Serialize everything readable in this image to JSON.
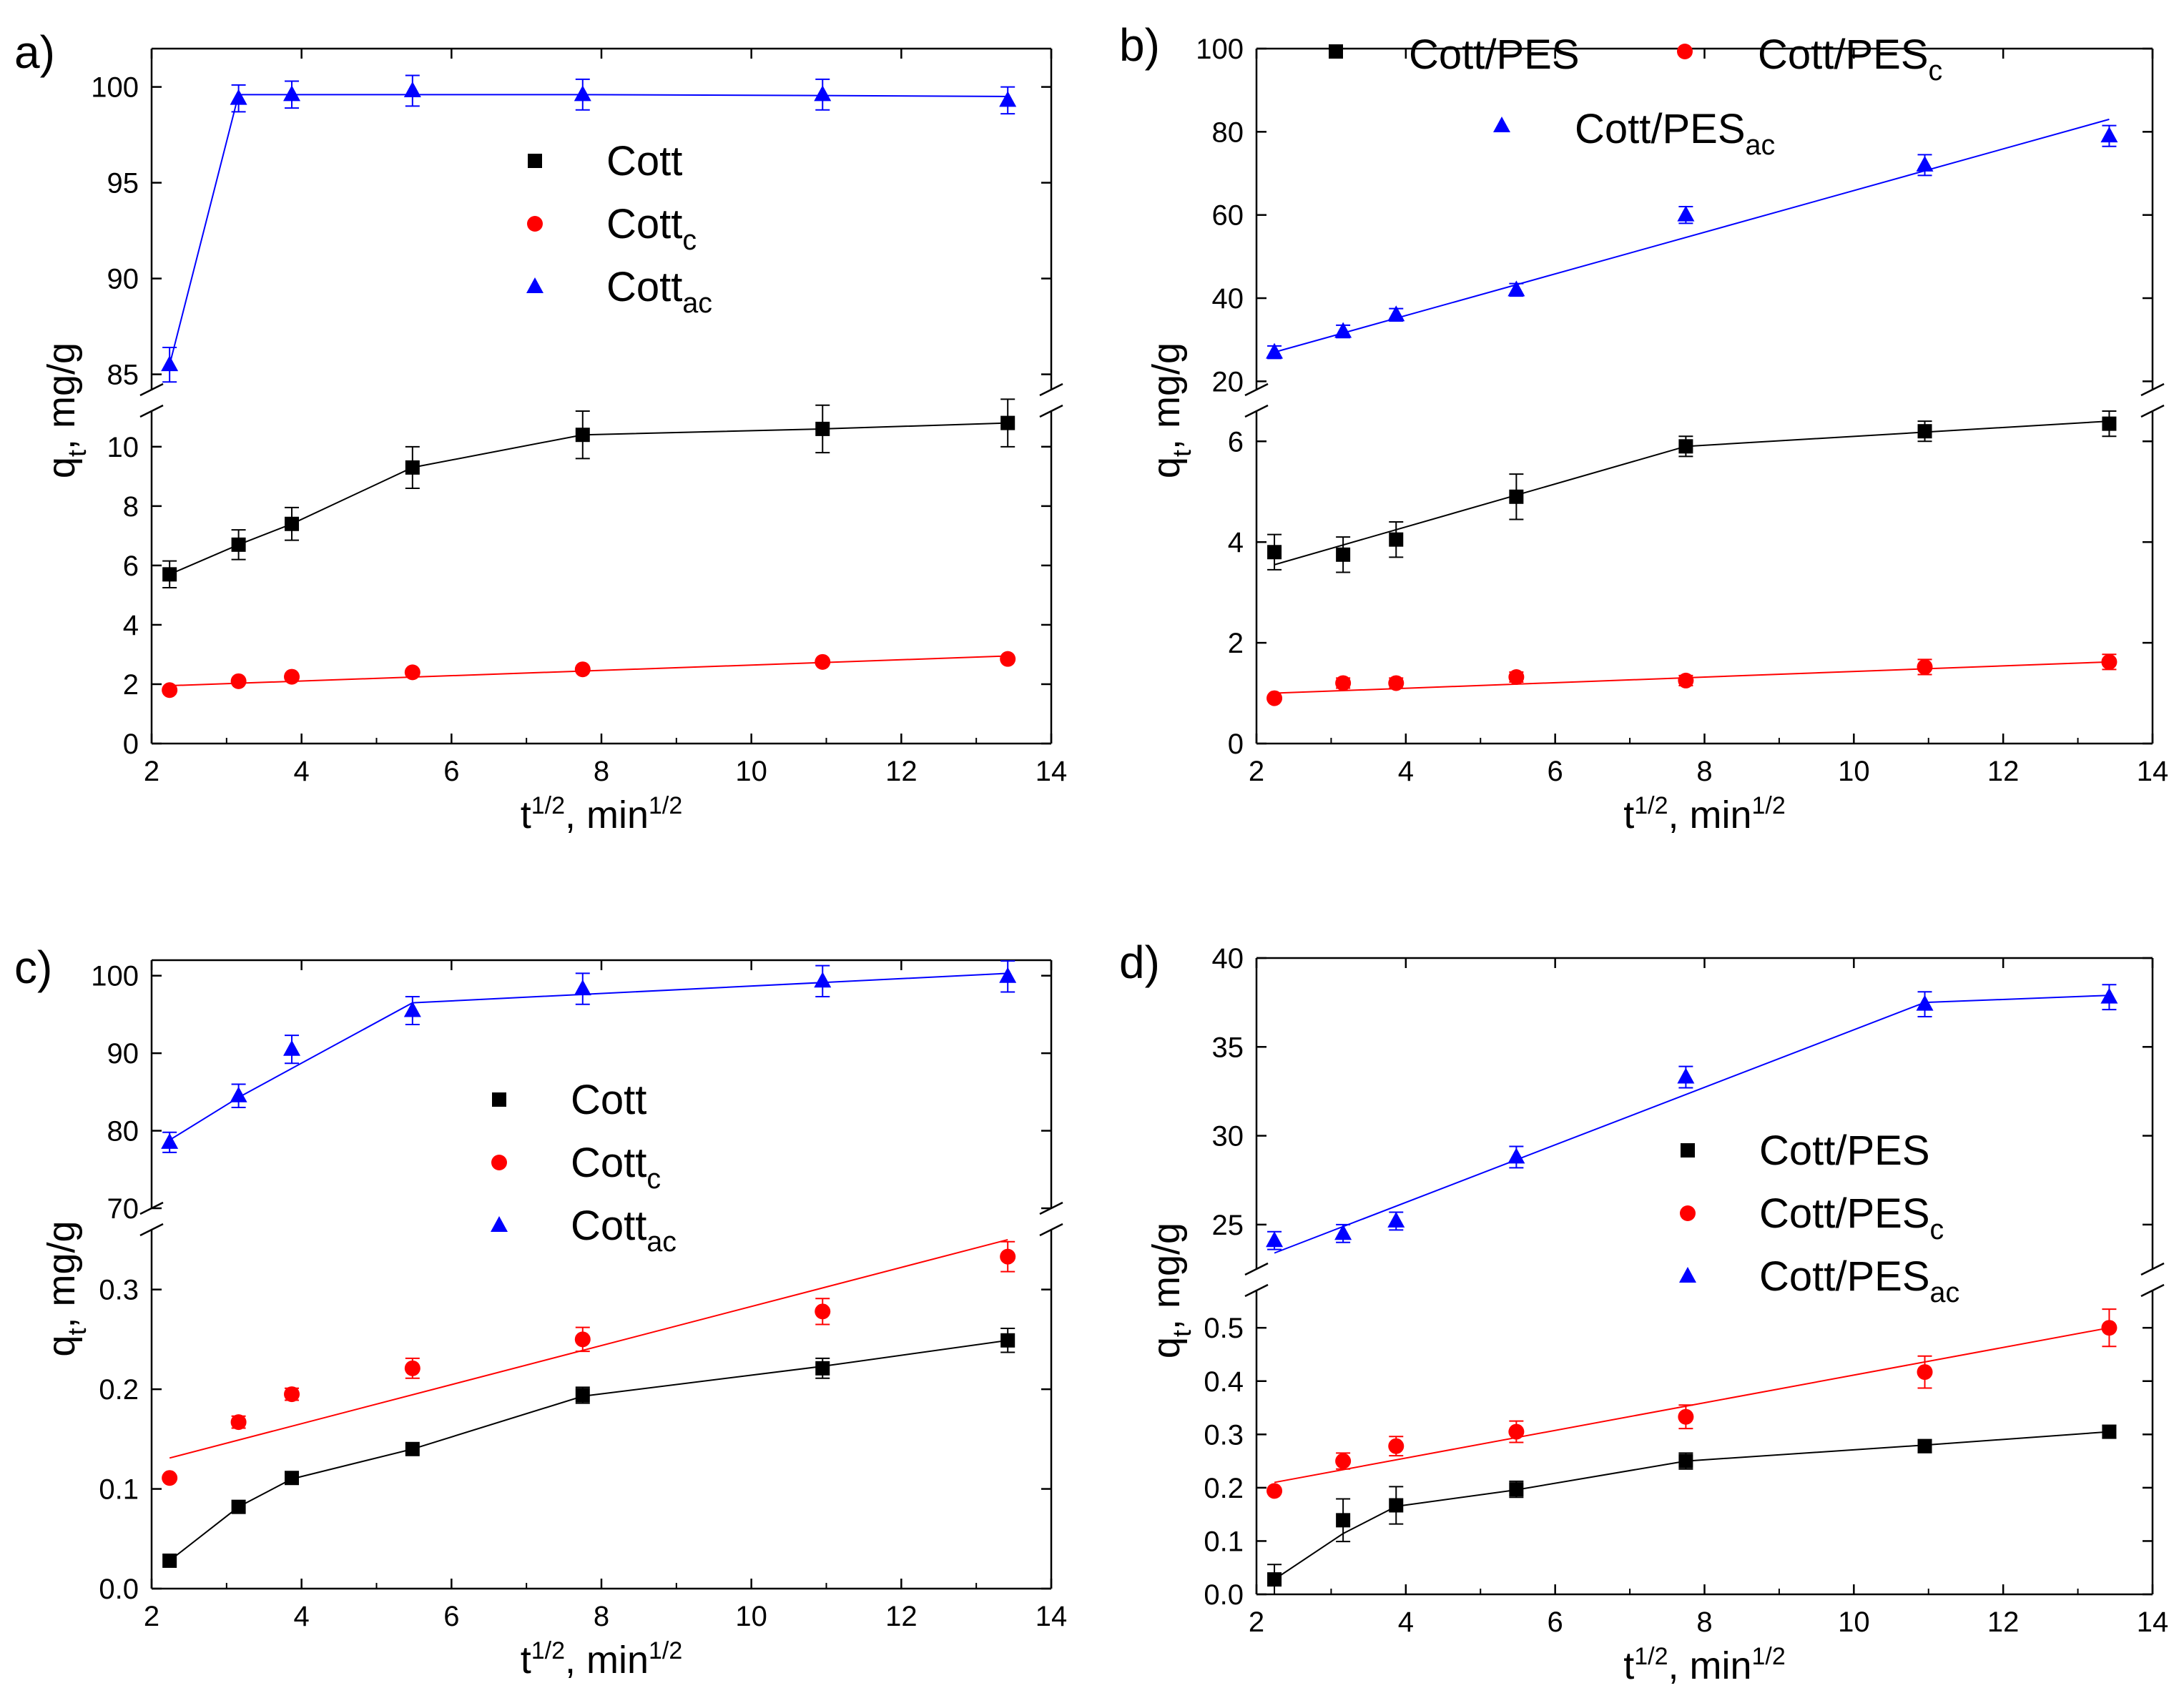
{
  "chart_data": [
    {
      "panel": "a)",
      "type": "scatter",
      "x_label": "t1/2, min1/2",
      "y_label": "qt, mg/g",
      "xlim": [
        2,
        14
      ],
      "x_ticks": [
        "2",
        "4",
        "6",
        "8",
        "10",
        "12",
        "14"
      ],
      "axis_break": true,
      "ylim_lower": [
        0,
        11.2
      ],
      "ylim_upper": [
        84.2,
        102
      ],
      "y_ticks_lower": [
        "0",
        "2",
        "4",
        "6",
        "8",
        "10"
      ],
      "y_ticks_upper": [
        "85",
        "90",
        "95",
        "100"
      ],
      "x": [
        2.24,
        3.16,
        3.87,
        5.48,
        7.75,
        10.95,
        13.42
      ],
      "legend": [
        {
          "label": "Cott",
          "sub": ""
        },
        {
          "label": "Cott",
          "sub": "c"
        },
        {
          "label": "Cott",
          "sub": "ac"
        }
      ],
      "series": [
        {
          "name": "Cott",
          "color": "#000000",
          "marker": "square",
          "axis": "lower",
          "values": [
            5.7,
            6.7,
            7.4,
            9.3,
            10.4,
            10.6,
            10.8
          ],
          "errors": [
            0.45,
            0.5,
            0.55,
            0.7,
            0.8,
            0.8,
            0.8
          ],
          "fit_x": [
            2.24,
            3.16,
            3.87,
            5.48,
            7.75,
            10.95,
            13.42
          ],
          "fit_y": [
            5.7,
            6.7,
            7.4,
            9.3,
            10.4,
            10.6,
            10.8
          ]
        },
        {
          "name": "Cottc",
          "color": "#ff0000",
          "marker": "circle",
          "axis": "lower",
          "values": [
            1.8,
            2.1,
            2.25,
            2.4,
            2.5,
            2.75,
            2.85
          ],
          "errors": [
            0,
            0,
            0,
            0,
            0,
            0,
            0
          ],
          "fit_x": [
            2.24,
            13.42
          ],
          "fit_y": [
            1.95,
            2.95
          ]
        },
        {
          "name": "Cottac",
          "color": "#0000ff",
          "marker": "triangle",
          "axis": "upper",
          "values": [
            85.5,
            99.4,
            99.6,
            99.8,
            99.6,
            99.6,
            99.3
          ],
          "errors": [
            0.9,
            0.7,
            0.7,
            0.8,
            0.8,
            0.8,
            0.7
          ],
          "fit_x": [
            2.24,
            3.16,
            3.87,
            5.48,
            7.75,
            10.95,
            13.42
          ],
          "fit_y": [
            85.5,
            99.6,
            99.6,
            99.6,
            99.6,
            99.55,
            99.5
          ]
        }
      ]
    },
    {
      "panel": "b)",
      "type": "scatter",
      "x_label": "t1/2, min1/2",
      "y_label": "qt, mg/g",
      "xlim": [
        2,
        14
      ],
      "x_ticks": [
        "2",
        "4",
        "6",
        "8",
        "10",
        "12",
        "14"
      ],
      "axis_break": true,
      "ylim_lower": [
        0,
        6.6
      ],
      "ylim_upper": [
        18,
        100
      ],
      "y_ticks_lower": [
        "0",
        "2",
        "4",
        "6"
      ],
      "y_ticks_upper": [
        "20",
        "40",
        "60",
        "80",
        "100"
      ],
      "x": [
        2.24,
        3.16,
        3.87,
        5.48,
        7.75,
        10.95,
        13.42
      ],
      "legend": [
        {
          "label": "Cott/PES",
          "sub": ""
        },
        {
          "label": "Cott/PES",
          "sub": "c"
        },
        {
          "label": "Cott/PES",
          "sub": "ac"
        }
      ],
      "series": [
        {
          "name": "Cott/PES",
          "color": "#000000",
          "marker": "square",
          "axis": "lower",
          "values": [
            3.8,
            3.75,
            4.05,
            4.9,
            5.9,
            6.2,
            6.35
          ],
          "errors": [
            0.35,
            0.35,
            0.35,
            0.45,
            0.2,
            0.2,
            0.25
          ],
          "fit_x": [
            2.24,
            7.75,
            13.42
          ],
          "fit_y": [
            3.55,
            5.9,
            6.4
          ]
        },
        {
          "name": "Cott/PESc",
          "color": "#ff0000",
          "marker": "circle",
          "axis": "lower",
          "values": [
            0.9,
            1.2,
            1.2,
            1.32,
            1.25,
            1.52,
            1.62
          ],
          "errors": [
            0,
            0.1,
            0.1,
            0.1,
            0.1,
            0.15,
            0.15
          ],
          "fit_x": [
            2.24,
            13.42
          ],
          "fit_y": [
            1.0,
            1.62
          ]
        },
        {
          "name": "Cott/PESac",
          "color": "#0000ff",
          "marker": "triangle",
          "axis": "upper",
          "values": [
            27,
            32,
            36,
            42,
            60,
            72,
            79
          ],
          "errors": [
            1.5,
            1.5,
            1.5,
            1.5,
            2,
            2.5,
            2.5
          ],
          "fit_x": [
            2.24,
            13.42
          ],
          "fit_y": [
            27,
            83
          ]
        }
      ]
    },
    {
      "panel": "c)",
      "type": "scatter",
      "x_label": "t1/2, min1/2",
      "y_label": "qt, mg/g",
      "xlim": [
        2,
        14
      ],
      "x_ticks": [
        "2",
        "4",
        "6",
        "8",
        "10",
        "12",
        "14"
      ],
      "axis_break": true,
      "ylim_lower": [
        0,
        0.36
      ],
      "ylim_upper": [
        70,
        102
      ],
      "y_ticks_lower": [
        "0.0",
        "0.1",
        "0.2",
        "0.3"
      ],
      "y_ticks_upper": [
        "70",
        "80",
        "90",
        "100"
      ],
      "x": [
        2.24,
        3.16,
        3.87,
        5.48,
        7.75,
        10.95,
        13.42
      ],
      "legend": [
        {
          "label": "Cott",
          "sub": ""
        },
        {
          "label": "Cott",
          "sub": "c"
        },
        {
          "label": "Cott",
          "sub": "ac"
        }
      ],
      "series": [
        {
          "name": "Cott",
          "color": "#000000",
          "marker": "square",
          "axis": "lower",
          "values": [
            0.028,
            0.082,
            0.111,
            0.14,
            0.194,
            0.221,
            0.249
          ],
          "errors": [
            0,
            0,
            0,
            0,
            0.008,
            0.01,
            0.012
          ],
          "fit_x": [
            2.24,
            3.16,
            3.87,
            5.48,
            7.75,
            10.95,
            13.42
          ],
          "fit_y": [
            0.028,
            0.082,
            0.11,
            0.14,
            0.193,
            0.223,
            0.249
          ]
        },
        {
          "name": "Cottc",
          "color": "#ff0000",
          "marker": "circle",
          "axis": "lower",
          "values": [
            0.111,
            0.167,
            0.195,
            0.221,
            0.25,
            0.278,
            0.333
          ],
          "errors": [
            0,
            0.006,
            0.006,
            0.01,
            0.012,
            0.013,
            0.015
          ],
          "fit_x": [
            2.24,
            13.42
          ],
          "fit_y": [
            0.131,
            0.35
          ]
        },
        {
          "name": "Cottac",
          "color": "#0000ff",
          "marker": "triangle",
          "axis": "upper",
          "values": [
            78.5,
            84.5,
            90.5,
            95.5,
            98.3,
            99.3,
            99.9
          ],
          "errors": [
            1.3,
            1.5,
            1.8,
            1.8,
            2,
            2,
            2
          ],
          "fit_x": [
            2.24,
            3.16,
            5.48,
            13.42
          ],
          "fit_y": [
            78.8,
            84.3,
            96.5,
            100.3
          ]
        }
      ]
    },
    {
      "panel": "d)",
      "type": "scatter",
      "x_label": "t1/2, min1/2",
      "y_label": "qt, mg/g",
      "xlim": [
        2,
        14
      ],
      "x_ticks": [
        "2",
        "4",
        "6",
        "8",
        "10",
        "12",
        "14"
      ],
      "axis_break": true,
      "ylim_lower": [
        0,
        0.57
      ],
      "ylim_upper": [
        22.5,
        40
      ],
      "y_ticks_lower": [
        "0.0",
        "0.1",
        "0.2",
        "0.3",
        "0.4",
        "0.5"
      ],
      "y_ticks_upper": [
        "25",
        "30",
        "35",
        "40"
      ],
      "x": [
        2.24,
        3.16,
        3.87,
        5.48,
        7.75,
        10.95,
        13.42
      ],
      "legend": [
        {
          "label": "Cott/PES",
          "sub": ""
        },
        {
          "label": "Cott/PES",
          "sub": "c"
        },
        {
          "label": "Cott/PES",
          "sub": "ac"
        }
      ],
      "series": [
        {
          "name": "Cott/PES",
          "color": "#000000",
          "marker": "square",
          "axis": "lower",
          "values": [
            0.028,
            0.139,
            0.167,
            0.197,
            0.25,
            0.278,
            0.305
          ],
          "errors": [
            0.028,
            0.04,
            0.035,
            0.015,
            0.015,
            0.012,
            0.012
          ],
          "fit_x": [
            2.24,
            3.16,
            3.87,
            5.48,
            7.75,
            10.95,
            13.42
          ],
          "fit_y": [
            0.028,
            0.114,
            0.165,
            0.196,
            0.25,
            0.28,
            0.305
          ]
        },
        {
          "name": "Cott/PESc",
          "color": "#ff0000",
          "marker": "circle",
          "axis": "lower",
          "values": [
            0.194,
            0.25,
            0.278,
            0.305,
            0.333,
            0.417,
            0.5
          ],
          "errors": [
            0,
            0.015,
            0.018,
            0.02,
            0.022,
            0.03,
            0.035
          ],
          "fit_x": [
            2.24,
            13.42
          ],
          "fit_y": [
            0.21,
            0.5
          ]
        },
        {
          "name": "Cott/PESac",
          "color": "#0000ff",
          "marker": "triangle",
          "axis": "upper",
          "values": [
            24.1,
            24.5,
            25.2,
            28.8,
            33.3,
            37.4,
            37.8
          ],
          "errors": [
            0.5,
            0.5,
            0.5,
            0.6,
            0.6,
            0.7,
            0.7
          ],
          "fit_x": [
            2.24,
            10.95,
            13.42
          ],
          "fit_y": [
            23.4,
            37.5,
            37.9
          ]
        }
      ]
    }
  ]
}
